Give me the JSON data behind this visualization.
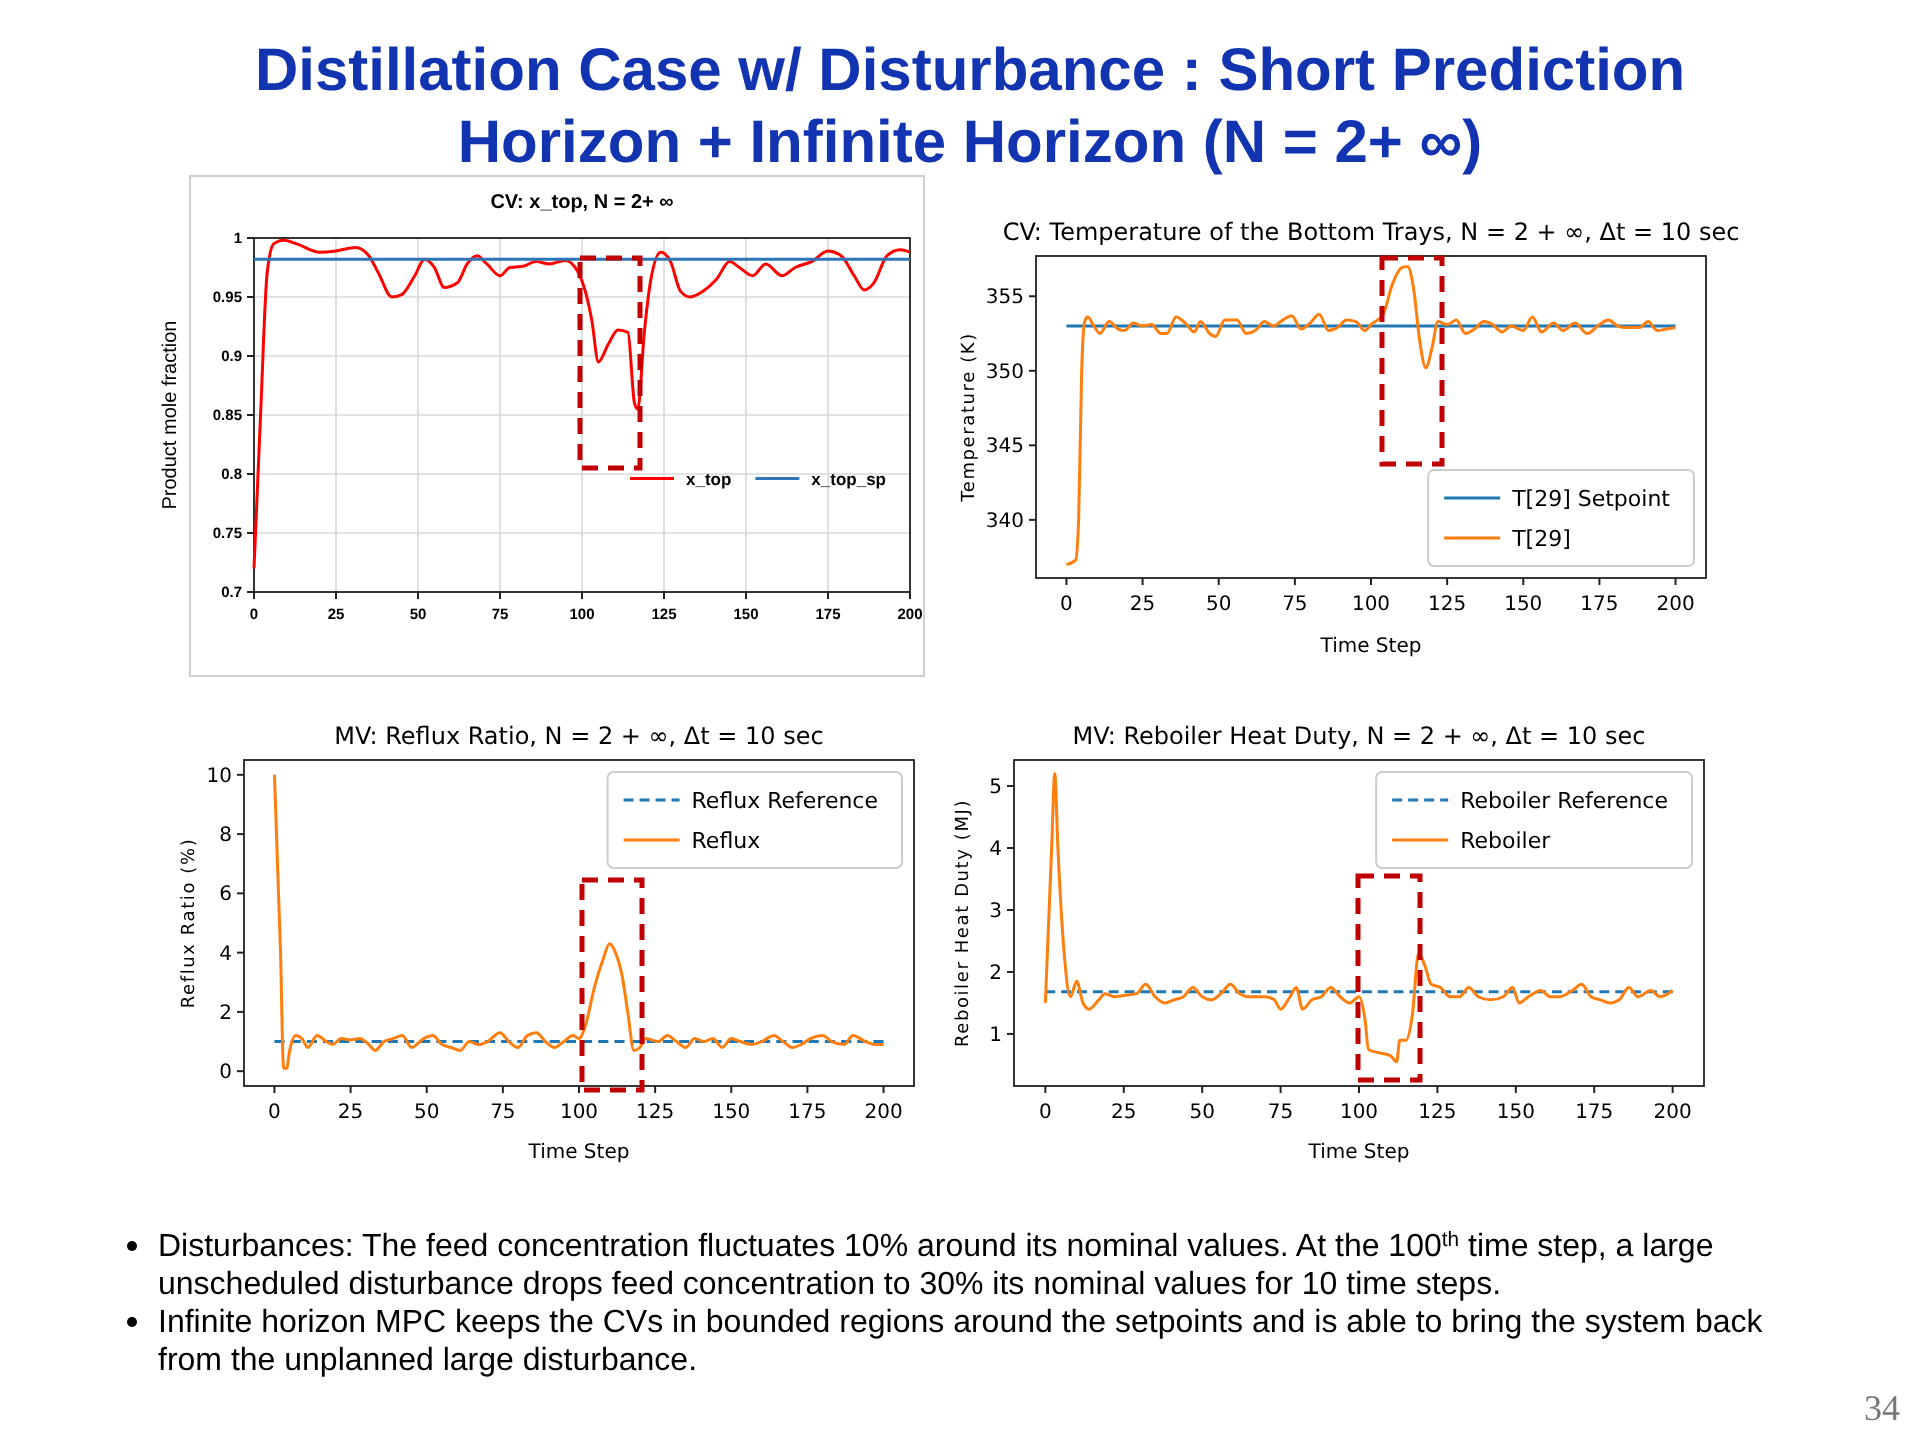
{
  "chart_data": [
    {
      "type": "other",
      "title": "Distillation Case w/ Disturbance : Short Prediction Horizon + Infinite Horizon (N = 2+ ∞)"
    },
    {
      "type": "line",
      "title": "CV: x_top, N = 2+ ∞",
      "ylabel": "Product mole fraction",
      "xlim": [
        0,
        200
      ],
      "ylim": [
        0.7,
        1
      ],
      "xticks": [
        0,
        25,
        50,
        75,
        100,
        125,
        150,
        175,
        200
      ],
      "yticks": [
        0.7,
        0.75,
        0.8,
        0.85,
        0.9,
        0.95,
        1
      ],
      "grid": true,
      "legend": "right",
      "series": [
        {
          "name": "x_top",
          "color": "#ff0000",
          "x": [
            0,
            2,
            4,
            6,
            9,
            13,
            20,
            25,
            31,
            35,
            38,
            42,
            45,
            49,
            52,
            55,
            58,
            62,
            65,
            68,
            71,
            75,
            78,
            82,
            86,
            90,
            95,
            99,
            101,
            103,
            105,
            108,
            111,
            114,
            116,
            117,
            119,
            121,
            124,
            127,
            130,
            133,
            137,
            141,
            145,
            148,
            152,
            156,
            161,
            165,
            170,
            175,
            179,
            183,
            186,
            189,
            193,
            197,
            200
          ],
          "values": [
            0.72,
            0.85,
            0.97,
            0.995,
            0.998,
            0.995,
            0.988,
            0.989,
            0.992,
            0.985,
            0.97,
            0.95,
            0.952,
            0.968,
            0.982,
            0.975,
            0.958,
            0.962,
            0.978,
            0.985,
            0.978,
            0.968,
            0.975,
            0.976,
            0.98,
            0.978,
            0.981,
            0.97,
            0.955,
            0.93,
            0.895,
            0.91,
            0.922,
            0.92,
            0.86,
            0.855,
            0.92,
            0.965,
            0.988,
            0.98,
            0.955,
            0.95,
            0.955,
            0.965,
            0.98,
            0.975,
            0.968,
            0.978,
            0.968,
            0.975,
            0.98,
            0.989,
            0.985,
            0.968,
            0.956,
            0.962,
            0.985,
            0.99,
            0.988
          ]
        },
        {
          "name": "x_top_sp",
          "color": "#2e75b6",
          "x": [
            0,
            200
          ],
          "values": [
            0.982,
            0.982
          ]
        }
      ]
    },
    {
      "type": "line",
      "title": "CV: Temperature of the Bottom Trays, N = 2 + ∞, Δt = 10 sec",
      "xlabel": "Time Step",
      "ylabel": "Temperature (K)",
      "xlim": [
        -10,
        210
      ],
      "ylim": [
        336.1,
        357.7
      ],
      "xticks": [
        0,
        25,
        50,
        75,
        100,
        125,
        150,
        175,
        200
      ],
      "yticks": [
        340,
        345,
        350,
        355
      ],
      "legend": "bottom right",
      "series": [
        {
          "name": "T[29] Setpoint",
          "color": "#1f77b4",
          "x": [
            0,
            200
          ],
          "values": [
            353,
            353
          ]
        },
        {
          "name": "T[29]",
          "color": "#ff7f0e",
          "x": [
            0,
            3,
            4,
            5,
            6,
            7,
            9,
            11,
            14,
            17,
            19,
            22,
            25,
            28,
            31,
            33,
            36,
            39,
            42,
            44,
            47,
            49,
            52,
            56,
            59,
            62,
            65,
            68,
            71,
            74,
            77,
            80,
            83,
            86,
            89,
            92,
            95,
            98,
            100,
            104,
            107,
            110,
            112,
            114,
            116,
            118,
            120,
            122,
            125,
            128,
            131,
            134,
            137,
            140,
            143,
            146,
            150,
            153,
            156,
            160,
            163,
            167,
            171,
            175,
            178,
            181,
            184,
            188,
            191,
            194,
            197,
            200
          ],
          "values": [
            337,
            337.3,
            340,
            350,
            353.3,
            353.6,
            353,
            352.5,
            353.3,
            352.8,
            352.7,
            353.2,
            353,
            353.1,
            352.5,
            352.5,
            353.6,
            353.2,
            352.6,
            353.3,
            352.5,
            352.3,
            353.4,
            353.4,
            352.5,
            352.7,
            353.3,
            353,
            353.4,
            353.7,
            352.8,
            353.2,
            353.8,
            352.7,
            352.9,
            353.4,
            353.3,
            352.7,
            353.1,
            353.8,
            355.8,
            356.9,
            357,
            355.5,
            352,
            350.2,
            351.5,
            353.3,
            353.1,
            353.4,
            352.5,
            352.8,
            353.3,
            353.1,
            352.6,
            353,
            352.7,
            353.6,
            352.6,
            353.2,
            352.7,
            353.2,
            352.5,
            353.1,
            353.4,
            353,
            352.9,
            352.9,
            353.3,
            352.7,
            352.8,
            352.9
          ]
        }
      ]
    },
    {
      "type": "line",
      "title": "MV: Reflux Ratio, N = 2 + ∞, Δt = 10 sec",
      "xlabel": "Time Step",
      "ylabel": "Reflux Ratio (%)",
      "xlim": [
        -10,
        210
      ],
      "ylim": [
        -0.5,
        10.5
      ],
      "xticks": [
        0,
        25,
        50,
        75,
        100,
        125,
        150,
        175,
        200
      ],
      "yticks": [
        0,
        2,
        4,
        6,
        8,
        10
      ],
      "legend": "top right",
      "series": [
        {
          "name": "Reflux Reference",
          "color": "#1f77b4",
          "line_style": "dashed",
          "x": [
            0,
            200
          ],
          "values": [
            1,
            1
          ]
        },
        {
          "name": "Reflux",
          "color": "#ff7f0e",
          "x": [
            0,
            2,
            3,
            4,
            5,
            7,
            9,
            11,
            14,
            17,
            19,
            22,
            25,
            28,
            31,
            33,
            36,
            39,
            42,
            45,
            49,
            52,
            55,
            58,
            61,
            64,
            67,
            70,
            74,
            77,
            80,
            83,
            86,
            89,
            92,
            95,
            98,
            100,
            102,
            105,
            108,
            110,
            112,
            114,
            116,
            118,
            120,
            122,
            126,
            129,
            132,
            135,
            138,
            141,
            144,
            147,
            150,
            153,
            157,
            160,
            164,
            167,
            170,
            173,
            176,
            180,
            183,
            187,
            190,
            194,
            197,
            200
          ],
          "values": [
            10,
            4,
            0.1,
            0.1,
            0.7,
            1.2,
            1.1,
            0.8,
            1.2,
            1,
            0.9,
            1.1,
            1.05,
            1.1,
            0.9,
            0.7,
            1,
            1.1,
            1.2,
            0.8,
            1.1,
            1.2,
            0.9,
            0.8,
            0.7,
            1,
            0.9,
            1,
            1.3,
            1,
            0.8,
            1.2,
            1.3,
            1,
            0.8,
            1,
            1.2,
            1.1,
            1.5,
            2.8,
            3.8,
            4.3,
            4,
            3.3,
            2,
            0.7,
            0.8,
            1.1,
            1,
            1.2,
            1,
            0.8,
            1.1,
            1,
            1.1,
            0.8,
            1.1,
            1,
            0.9,
            1,
            1.2,
            1,
            0.8,
            0.9,
            1.1,
            1.2,
            1,
            0.9,
            1.2,
            1,
            0.9,
            0.9
          ]
        }
      ]
    },
    {
      "type": "line",
      "title": "MV: Reboiler Heat Duty, N = 2 + ∞, Δt = 10 sec",
      "xlabel": "Time Step",
      "ylabel": "Reboiler Heat Duty (MJ)",
      "xlim": [
        -10,
        210
      ],
      "ylim": [
        0.16,
        5.42
      ],
      "xticks": [
        0,
        25,
        50,
        75,
        100,
        125,
        150,
        175,
        200
      ],
      "yticks": [
        1,
        2,
        3,
        4,
        5
      ],
      "legend": "top right",
      "series": [
        {
          "name": "Reboiler Reference",
          "color": "#1f77b4",
          "line_style": "dashed",
          "x": [
            0,
            200
          ],
          "values": [
            1.68,
            1.68
          ]
        },
        {
          "name": "Reboiler",
          "color": "#ff7f0e",
          "x": [
            0,
            2,
            3,
            4,
            6,
            8,
            10,
            12,
            14,
            17,
            19,
            22,
            25,
            29,
            32,
            35,
            38,
            41,
            44,
            47,
            50,
            53,
            56,
            59,
            62,
            65,
            70,
            73,
            75,
            78,
            80,
            82,
            85,
            88,
            91,
            94,
            97,
            100,
            102,
            103,
            106,
            110,
            112,
            113,
            115,
            117,
            119,
            121,
            123,
            126,
            129,
            132,
            135,
            138,
            142,
            146,
            149,
            151,
            154,
            158,
            161,
            164,
            168,
            171,
            174,
            177,
            180,
            183,
            186,
            189,
            193,
            196,
            200
          ],
          "values": [
            1.5,
            4,
            5.2,
            4,
            2.3,
            1.6,
            1.85,
            1.5,
            1.4,
            1.55,
            1.65,
            1.6,
            1.62,
            1.65,
            1.8,
            1.6,
            1.5,
            1.55,
            1.6,
            1.75,
            1.6,
            1.55,
            1.65,
            1.8,
            1.65,
            1.6,
            1.6,
            1.55,
            1.4,
            1.6,
            1.75,
            1.4,
            1.55,
            1.6,
            1.75,
            1.6,
            1.5,
            1.6,
            1.2,
            0.75,
            0.7,
            0.65,
            0.55,
            0.9,
            0.9,
            1.3,
            2.3,
            2.1,
            1.8,
            1.75,
            1.6,
            1.6,
            1.75,
            1.6,
            1.55,
            1.6,
            1.75,
            1.5,
            1.6,
            1.7,
            1.6,
            1.6,
            1.7,
            1.8,
            1.6,
            1.55,
            1.5,
            1.55,
            1.75,
            1.6,
            1.7,
            1.6,
            1.7
          ]
        }
      ]
    },
    {
      "type": "other",
      "annotations": [
        "Disturbances: The feed concentration fluctuates 10% around its nominal values. At the 100$^{th}$ time step, a large unscheduled disturbance drops feed concentration to 30% its nominal values for 10 time steps.",
        "Infinite horizon MPC keeps the CVs in bounded regions around the setpoints and is able to bring the system back from the unplanned large disturbance.",
        "34"
      ]
    }
  ]
}
